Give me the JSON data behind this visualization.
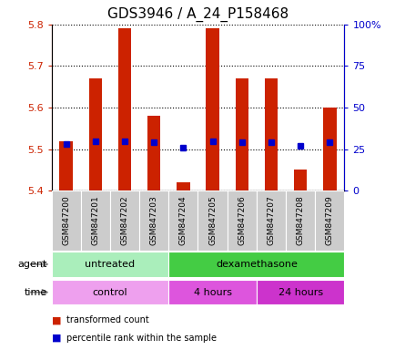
{
  "title": "GDS3946 / A_24_P158468",
  "samples": [
    "GSM847200",
    "GSM847201",
    "GSM847202",
    "GSM847203",
    "GSM847204",
    "GSM847205",
    "GSM847206",
    "GSM847207",
    "GSM847208",
    "GSM847209"
  ],
  "transformed_counts": [
    5.52,
    5.67,
    5.79,
    5.58,
    5.42,
    5.79,
    5.67,
    5.67,
    5.45,
    5.6
  ],
  "percentile_ranks": [
    28,
    30,
    30,
    29,
    26,
    30,
    29,
    29,
    27,
    29
  ],
  "ylim": [
    5.4,
    5.8
  ],
  "yticks": [
    5.4,
    5.5,
    5.6,
    5.7,
    5.8
  ],
  "right_yticks": [
    0,
    25,
    50,
    75,
    100
  ],
  "right_ylabels": [
    "0",
    "25",
    "50",
    "75",
    "100%"
  ],
  "bar_color": "#cc2200",
  "dot_color": "#0000cc",
  "agent_groups": [
    {
      "label": "untreated",
      "start": 0,
      "end": 4,
      "color": "#aaeebb"
    },
    {
      "label": "dexamethasone",
      "start": 4,
      "end": 10,
      "color": "#44cc44"
    }
  ],
  "time_groups": [
    {
      "label": "control",
      "start": 0,
      "end": 4,
      "color": "#eea0ee"
    },
    {
      "label": "4 hours",
      "start": 4,
      "end": 7,
      "color": "#dd55dd"
    },
    {
      "label": "24 hours",
      "start": 7,
      "end": 10,
      "color": "#cc33cc"
    }
  ],
  "legend_bar_color": "#cc2200",
  "legend_dot_color": "#0000cc",
  "legend_bar_label": "transformed count",
  "legend_dot_label": "percentile rank within the sample",
  "agent_label": "agent",
  "time_label": "time",
  "title_fontsize": 11,
  "tick_fontsize": 8,
  "annotation_fontsize": 8,
  "sample_fontsize": 6.5
}
